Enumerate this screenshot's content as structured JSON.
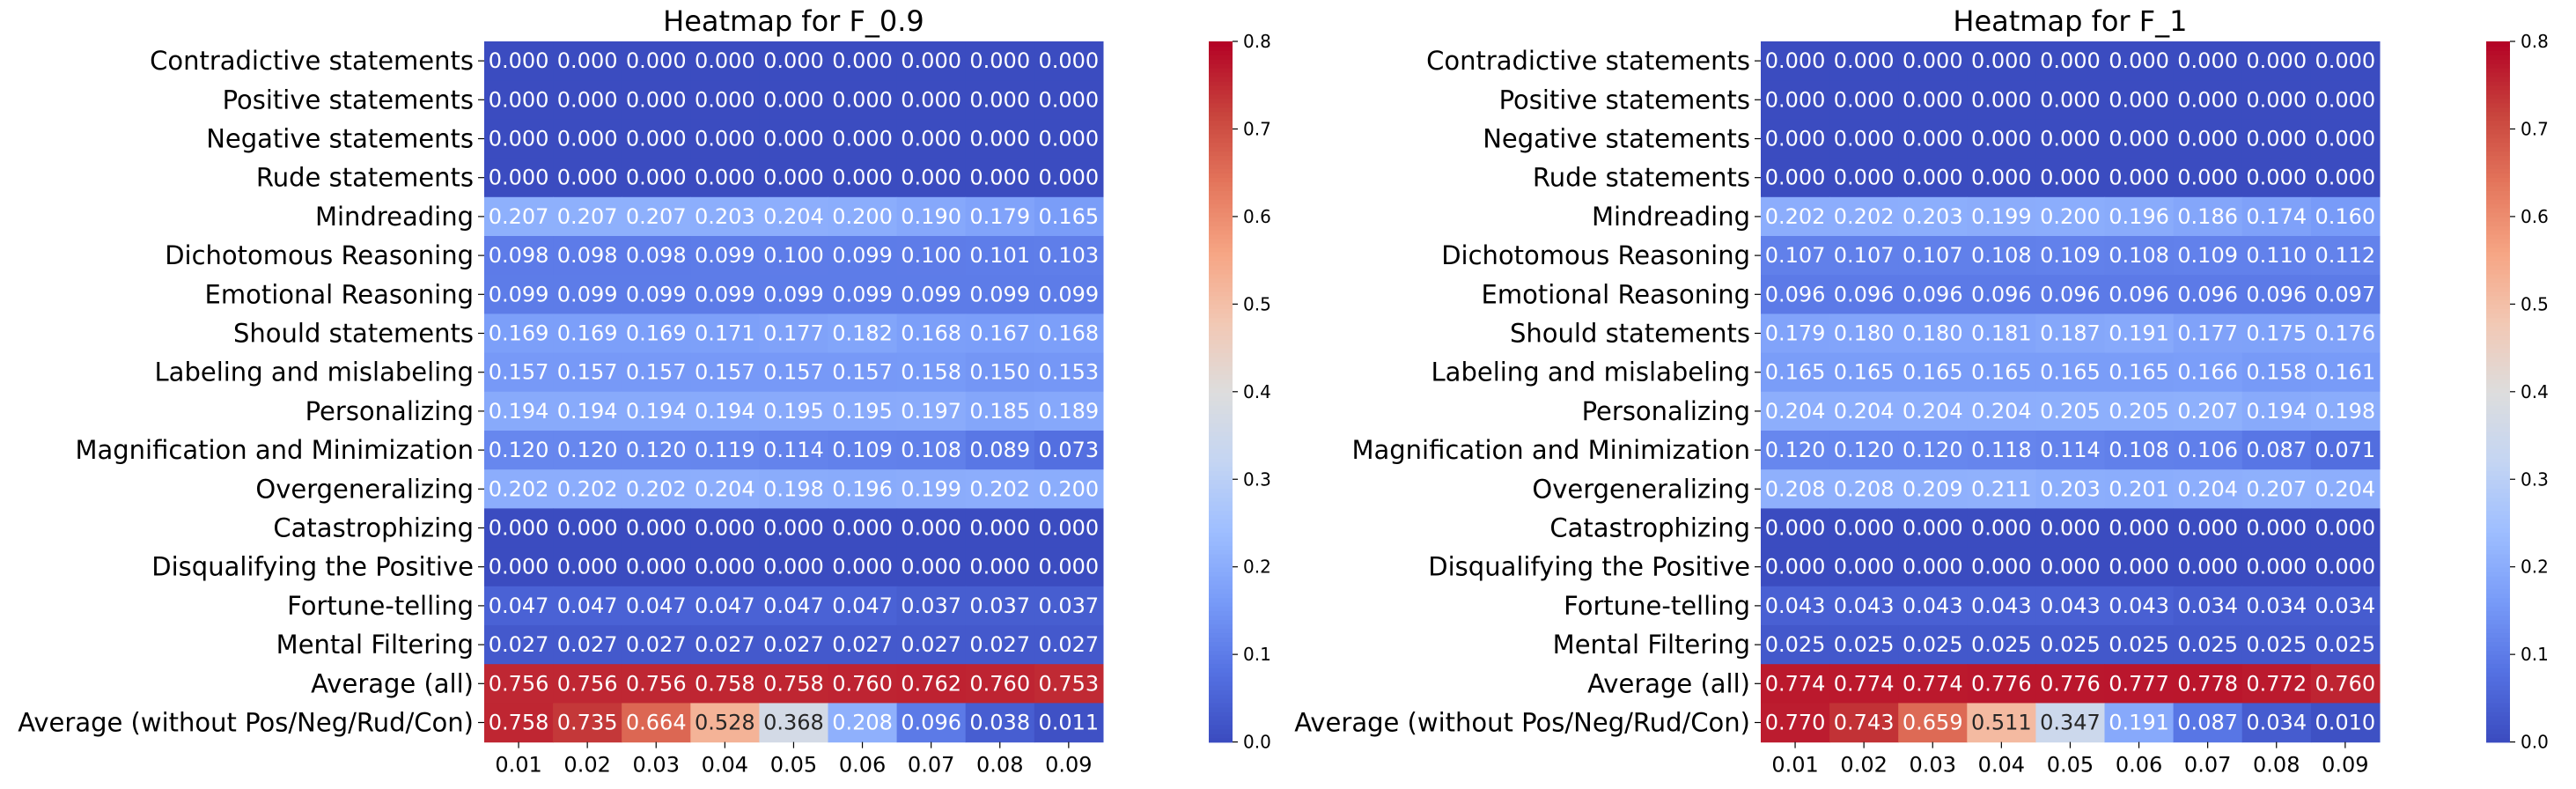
{
  "chart_data": [
    {
      "type": "heatmap",
      "title": "Heatmap for F_0.9",
      "rows": [
        "Contradictive statements",
        "Positive statements",
        "Negative statements",
        "Rude statements",
        "Mindreading",
        "Dichotomous Reasoning",
        "Emotional Reasoning",
        "Should statements",
        "Labeling and mislabeling",
        "Personalizing",
        "Magnification and Minimization",
        "Overgeneralizing",
        "Catastrophizing",
        "Disqualifying the Positive",
        "Fortune-telling",
        "Mental Filtering",
        "Average (all)",
        "Average (without Pos/Neg/Rud/Con)"
      ],
      "columns": [
        "0.01",
        "0.02",
        "0.03",
        "0.04",
        "0.05",
        "0.06",
        "0.07",
        "0.08",
        "0.09"
      ],
      "values": [
        [
          "0.000",
          "0.000",
          "0.000",
          "0.000",
          "0.000",
          "0.000",
          "0.000",
          "0.000",
          "0.000"
        ],
        [
          "0.000",
          "0.000",
          "0.000",
          "0.000",
          "0.000",
          "0.000",
          "0.000",
          "0.000",
          "0.000"
        ],
        [
          "0.000",
          "0.000",
          "0.000",
          "0.000",
          "0.000",
          "0.000",
          "0.000",
          "0.000",
          "0.000"
        ],
        [
          "0.000",
          "0.000",
          "0.000",
          "0.000",
          "0.000",
          "0.000",
          "0.000",
          "0.000",
          "0.000"
        ],
        [
          "0.207",
          "0.207",
          "0.207",
          "0.203",
          "0.204",
          "0.200",
          "0.190",
          "0.179",
          "0.165"
        ],
        [
          "0.098",
          "0.098",
          "0.098",
          "0.099",
          "0.100",
          "0.099",
          "0.100",
          "0.101",
          "0.103"
        ],
        [
          "0.099",
          "0.099",
          "0.099",
          "0.099",
          "0.099",
          "0.099",
          "0.099",
          "0.099",
          "0.099"
        ],
        [
          "0.169",
          "0.169",
          "0.169",
          "0.171",
          "0.177",
          "0.182",
          "0.168",
          "0.167",
          "0.168"
        ],
        [
          "0.157",
          "0.157",
          "0.157",
          "0.157",
          "0.157",
          "0.157",
          "0.158",
          "0.150",
          "0.153"
        ],
        [
          "0.194",
          "0.194",
          "0.194",
          "0.194",
          "0.195",
          "0.195",
          "0.197",
          "0.185",
          "0.189"
        ],
        [
          "0.120",
          "0.120",
          "0.120",
          "0.119",
          "0.114",
          "0.109",
          "0.108",
          "0.089",
          "0.073"
        ],
        [
          "0.202",
          "0.202",
          "0.202",
          "0.204",
          "0.198",
          "0.196",
          "0.199",
          "0.202",
          "0.200"
        ],
        [
          "0.000",
          "0.000",
          "0.000",
          "0.000",
          "0.000",
          "0.000",
          "0.000",
          "0.000",
          "0.000"
        ],
        [
          "0.000",
          "0.000",
          "0.000",
          "0.000",
          "0.000",
          "0.000",
          "0.000",
          "0.000",
          "0.000"
        ],
        [
          "0.047",
          "0.047",
          "0.047",
          "0.047",
          "0.047",
          "0.047",
          "0.037",
          "0.037",
          "0.037"
        ],
        [
          "0.027",
          "0.027",
          "0.027",
          "0.027",
          "0.027",
          "0.027",
          "0.027",
          "0.027",
          "0.027"
        ],
        [
          "0.756",
          "0.756",
          "0.756",
          "0.758",
          "0.758",
          "0.760",
          "0.762",
          "0.760",
          "0.753"
        ],
        [
          "0.758",
          "0.735",
          "0.664",
          "0.528",
          "0.368",
          "0.208",
          "0.096",
          "0.038",
          "0.011"
        ]
      ],
      "colorbar": {
        "range": [
          0,
          0.8
        ],
        "ticks": [
          "0.0",
          "0.1",
          "0.2",
          "0.3",
          "0.4",
          "0.5",
          "0.6",
          "0.7",
          "0.8"
        ],
        "colormap": "coolwarm"
      }
    },
    {
      "type": "heatmap",
      "title": "Heatmap for F_1",
      "rows": [
        "Contradictive statements",
        "Positive statements",
        "Negative statements",
        "Rude statements",
        "Mindreading",
        "Dichotomous Reasoning",
        "Emotional Reasoning",
        "Should statements",
        "Labeling and mislabeling",
        "Personalizing",
        "Magnification and Minimization",
        "Overgeneralizing",
        "Catastrophizing",
        "Disqualifying the Positive",
        "Fortune-telling",
        "Mental Filtering",
        "Average (all)",
        "Average (without Pos/Neg/Rud/Con)"
      ],
      "columns": [
        "0.01",
        "0.02",
        "0.03",
        "0.04",
        "0.05",
        "0.06",
        "0.07",
        "0.08",
        "0.09"
      ],
      "values": [
        [
          "0.000",
          "0.000",
          "0.000",
          "0.000",
          "0.000",
          "0.000",
          "0.000",
          "0.000",
          "0.000"
        ],
        [
          "0.000",
          "0.000",
          "0.000",
          "0.000",
          "0.000",
          "0.000",
          "0.000",
          "0.000",
          "0.000"
        ],
        [
          "0.000",
          "0.000",
          "0.000",
          "0.000",
          "0.000",
          "0.000",
          "0.000",
          "0.000",
          "0.000"
        ],
        [
          "0.000",
          "0.000",
          "0.000",
          "0.000",
          "0.000",
          "0.000",
          "0.000",
          "0.000",
          "0.000"
        ],
        [
          "0.202",
          "0.202",
          "0.203",
          "0.199",
          "0.200",
          "0.196",
          "0.186",
          "0.174",
          "0.160"
        ],
        [
          "0.107",
          "0.107",
          "0.107",
          "0.108",
          "0.109",
          "0.108",
          "0.109",
          "0.110",
          "0.112"
        ],
        [
          "0.096",
          "0.096",
          "0.096",
          "0.096",
          "0.096",
          "0.096",
          "0.096",
          "0.096",
          "0.097"
        ],
        [
          "0.179",
          "0.180",
          "0.180",
          "0.181",
          "0.187",
          "0.191",
          "0.177",
          "0.175",
          "0.176"
        ],
        [
          "0.165",
          "0.165",
          "0.165",
          "0.165",
          "0.165",
          "0.165",
          "0.166",
          "0.158",
          "0.161"
        ],
        [
          "0.204",
          "0.204",
          "0.204",
          "0.204",
          "0.205",
          "0.205",
          "0.207",
          "0.194",
          "0.198"
        ],
        [
          "0.120",
          "0.120",
          "0.120",
          "0.118",
          "0.114",
          "0.108",
          "0.106",
          "0.087",
          "0.071"
        ],
        [
          "0.208",
          "0.208",
          "0.209",
          "0.211",
          "0.203",
          "0.201",
          "0.204",
          "0.207",
          "0.204"
        ],
        [
          "0.000",
          "0.000",
          "0.000",
          "0.000",
          "0.000",
          "0.000",
          "0.000",
          "0.000",
          "0.000"
        ],
        [
          "0.000",
          "0.000",
          "0.000",
          "0.000",
          "0.000",
          "0.000",
          "0.000",
          "0.000",
          "0.000"
        ],
        [
          "0.043",
          "0.043",
          "0.043",
          "0.043",
          "0.043",
          "0.043",
          "0.034",
          "0.034",
          "0.034"
        ],
        [
          "0.025",
          "0.025",
          "0.025",
          "0.025",
          "0.025",
          "0.025",
          "0.025",
          "0.025",
          "0.025"
        ],
        [
          "0.774",
          "0.774",
          "0.774",
          "0.776",
          "0.776",
          "0.777",
          "0.778",
          "0.772",
          "0.760"
        ],
        [
          "0.770",
          "0.743",
          "0.659",
          "0.511",
          "0.347",
          "0.191",
          "0.087",
          "0.034",
          "0.010"
        ]
      ],
      "colorbar": {
        "range": [
          0,
          0.8
        ],
        "ticks": [
          "0.0",
          "0.1",
          "0.2",
          "0.3",
          "0.4",
          "0.5",
          "0.6",
          "0.7",
          "0.8"
        ],
        "colormap": "coolwarm"
      }
    }
  ]
}
